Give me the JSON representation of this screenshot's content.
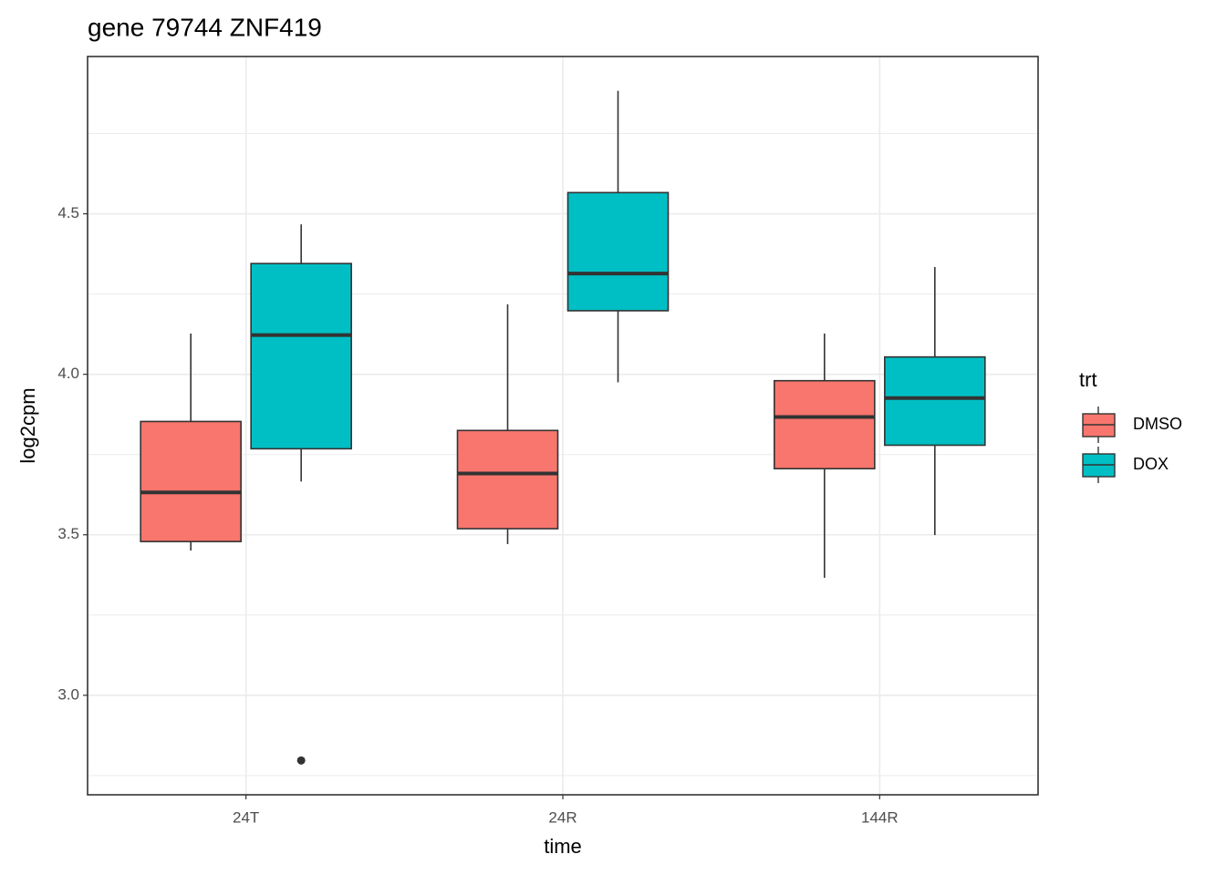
{
  "chart_data": {
    "type": "boxplot",
    "title": "gene 79744 ZNF419",
    "x_label": "time",
    "y_label": "log2cpm",
    "categories": [
      "24T",
      "24R",
      "144R"
    ],
    "legend_title": "trt",
    "legend_position": "right",
    "series": [
      {
        "name": "DMSO",
        "color": "#F8766D",
        "boxes": [
          {
            "low": 3.451,
            "q1": 3.479,
            "median": 3.632,
            "q3": 3.853,
            "high": 4.127
          },
          {
            "low": 3.471,
            "q1": 3.519,
            "median": 3.691,
            "q3": 3.825,
            "high": 4.218
          },
          {
            "low": 3.366,
            "q1": 3.706,
            "median": 3.867,
            "q3": 3.98,
            "high": 4.127
          }
        ]
      },
      {
        "name": "DOX",
        "color": "#00BFC4",
        "boxes": [
          {
            "low": 3.666,
            "q1": 3.768,
            "median": 4.122,
            "q3": 4.345,
            "high": 4.467,
            "outliers": [
              2.797
            ]
          },
          {
            "low": 3.975,
            "q1": 4.198,
            "median": 4.314,
            "q3": 4.566,
            "high": 4.883
          },
          {
            "low": 3.499,
            "q1": 3.779,
            "median": 3.926,
            "q3": 4.054,
            "high": 4.334
          }
        ]
      }
    ],
    "ylim": [
      2.69,
      4.99
    ],
    "yticks": [
      {
        "value": 3,
        "label": "3.0"
      },
      {
        "value": 3.5,
        "label": "3.5"
      },
      {
        "value": 4,
        "label": "4.0"
      },
      {
        "value": 4.5,
        "label": "4.5"
      }
    ],
    "grid": true
  }
}
